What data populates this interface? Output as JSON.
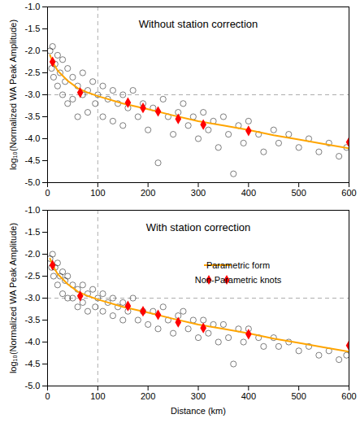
{
  "chart_data": [
    {
      "type": "scatter",
      "title": "Without station correction",
      "y_label": "log₁₀(Normalized WA Peak Amplitude)",
      "xlim": [
        0,
        600
      ],
      "ylim": [
        -5,
        -1
      ],
      "xticks": [
        0,
        100,
        200,
        300,
        400,
        500,
        600
      ],
      "yticks": [
        {
          "value": -5,
          "label": "-5.0"
        },
        -4.5,
        {
          "value": -4,
          "label": "-4.0"
        },
        -3.5,
        {
          "value": -3,
          "label": "-3.0"
        },
        -2.5,
        {
          "value": -2,
          "label": "-2.0"
        },
        -1.5,
        {
          "value": -1,
          "label": "-1.0"
        }
      ],
      "vline": 100,
      "hline": -3,
      "series": [
        {
          "type": "scatter",
          "color": "#000000",
          "marker": "open circle",
          "x": [
            5,
            8,
            10,
            12,
            15,
            20,
            20,
            25,
            30,
            30,
            35,
            40,
            40,
            50,
            50,
            60,
            60,
            70,
            70,
            80,
            80,
            90,
            95,
            100,
            110,
            110,
            120,
            130,
            130,
            140,
            150,
            150,
            160,
            170,
            180,
            190,
            200,
            210,
            220,
            230,
            240,
            250,
            260,
            270,
            280,
            290,
            300,
            310,
            320,
            330,
            340,
            350,
            360,
            370,
            380,
            390,
            400,
            420,
            430,
            450,
            460,
            480,
            500,
            520,
            540,
            560,
            580,
            595
          ],
          "values": [
            -2.0,
            -2.4,
            -1.9,
            -2.6,
            -2.3,
            -2.1,
            -2.8,
            -2.5,
            -2.2,
            -3.0,
            -2.7,
            -2.4,
            -3.2,
            -2.6,
            -3.1,
            -2.8,
            -3.5,
            -2.5,
            -3.0,
            -2.9,
            -3.4,
            -2.7,
            -3.2,
            -3.0,
            -2.8,
            -3.5,
            -3.1,
            -2.9,
            -3.6,
            -3.2,
            -3.0,
            -3.7,
            -3.3,
            -2.9,
            -3.5,
            -3.2,
            -3.8,
            -3.3,
            -4.55,
            -3.1,
            -3.5,
            -3.9,
            -3.4,
            -3.2,
            -3.7,
            -3.5,
            -4.0,
            -3.4,
            -3.8,
            -3.6,
            -4.2,
            -3.5,
            -3.9,
            -4.8,
            -3.7,
            -4.1,
            -3.6,
            -3.9,
            -4.3,
            -3.8,
            -4.1,
            -3.9,
            -4.2,
            -4.0,
            -4.3,
            -4.1,
            -4.4,
            -4.2
          ]
        },
        {
          "type": "line",
          "color": "#ffa500",
          "x": [
            5,
            10,
            20,
            40,
            60,
            80,
            100,
            150,
            200,
            250,
            300,
            350,
            400,
            450,
            500,
            550,
            600
          ],
          "values": [
            -2.1,
            -2.25,
            -2.45,
            -2.68,
            -2.85,
            -2.95,
            -3.03,
            -3.2,
            -3.33,
            -3.47,
            -3.6,
            -3.7,
            -3.8,
            -3.92,
            -4.02,
            -4.12,
            -4.22
          ]
        },
        {
          "type": "scatter",
          "color": "#ff0000",
          "marker": "diamond",
          "x": [
            10,
            65,
            160,
            190,
            220,
            260,
            310,
            400,
            600
          ],
          "values": [
            -2.25,
            -2.95,
            -3.18,
            -3.3,
            -3.38,
            -3.55,
            -3.68,
            -3.82,
            -4.08
          ]
        }
      ]
    },
    {
      "type": "scatter",
      "title": "With station correction",
      "x_label": "Distance (km)",
      "y_label": "log₁₀(Normalized WA Peak Amplitude)",
      "xlim": [
        0,
        600
      ],
      "ylim": [
        -5,
        -1
      ],
      "xticks": [
        0,
        100,
        200,
        300,
        400,
        500,
        600
      ],
      "yticks": [
        {
          "value": -5,
          "label": "-5.0"
        },
        -4.5,
        {
          "value": -4,
          "label": "-4.0"
        },
        -3.5,
        {
          "value": -3,
          "label": "-3.0"
        },
        -2.5,
        {
          "value": -2,
          "label": "-2.0"
        },
        -1.5,
        {
          "value": -1,
          "label": "-1.0"
        }
      ],
      "vline": 100,
      "hline": -3,
      "legend": "upper right",
      "series": [
        {
          "type": "scatter",
          "color": "#000000",
          "marker": "open circle",
          "x": [
            5,
            8,
            10,
            12,
            15,
            20,
            20,
            25,
            30,
            30,
            35,
            40,
            40,
            50,
            50,
            60,
            60,
            70,
            70,
            80,
            80,
            90,
            95,
            100,
            110,
            110,
            120,
            130,
            130,
            140,
            150,
            150,
            160,
            170,
            180,
            190,
            200,
            210,
            220,
            230,
            240,
            250,
            260,
            270,
            280,
            290,
            300,
            310,
            320,
            330,
            340,
            350,
            360,
            370,
            380,
            390,
            400,
            420,
            430,
            450,
            460,
            480,
            500,
            520,
            540,
            560,
            580,
            595
          ],
          "values": [
            -2.1,
            -2.3,
            -2.0,
            -2.5,
            -2.3,
            -2.2,
            -2.7,
            -2.5,
            -2.4,
            -2.9,
            -2.6,
            -2.5,
            -3.0,
            -2.7,
            -3.0,
            -2.8,
            -3.2,
            -2.7,
            -3.1,
            -2.9,
            -3.3,
            -2.8,
            -3.2,
            -3.0,
            -2.9,
            -3.3,
            -3.1,
            -3.0,
            -3.4,
            -3.2,
            -3.1,
            -3.5,
            -3.3,
            -3.0,
            -3.5,
            -3.3,
            -3.6,
            -3.3,
            -3.7,
            -3.2,
            -3.5,
            -3.8,
            -3.4,
            -3.3,
            -3.7,
            -3.5,
            -3.9,
            -3.5,
            -3.8,
            -3.6,
            -4.0,
            -3.6,
            -3.9,
            -4.5,
            -3.7,
            -4.0,
            -3.7,
            -3.9,
            -4.1,
            -3.9,
            -4.1,
            -4.0,
            -4.2,
            -4.1,
            -4.3,
            -4.2,
            -4.4,
            -4.3
          ]
        },
        {
          "type": "line",
          "name": "Parametric form",
          "color": "#ffa500",
          "x": [
            5,
            10,
            20,
            40,
            60,
            80,
            100,
            150,
            200,
            250,
            300,
            350,
            400,
            450,
            500,
            550,
            600
          ],
          "values": [
            -2.1,
            -2.25,
            -2.45,
            -2.68,
            -2.85,
            -2.95,
            -3.03,
            -3.2,
            -3.33,
            -3.47,
            -3.6,
            -3.7,
            -3.8,
            -3.92,
            -4.02,
            -4.12,
            -4.22
          ]
        },
        {
          "type": "scatter",
          "name": "Non-Parametric knots",
          "color": "#ff0000",
          "marker": "diamond",
          "x": [
            10,
            65,
            160,
            190,
            220,
            260,
            310,
            400,
            600
          ],
          "values": [
            -2.25,
            -2.95,
            -3.18,
            -3.3,
            -3.38,
            -3.55,
            -3.68,
            -3.82,
            -4.08
          ]
        }
      ]
    }
  ]
}
